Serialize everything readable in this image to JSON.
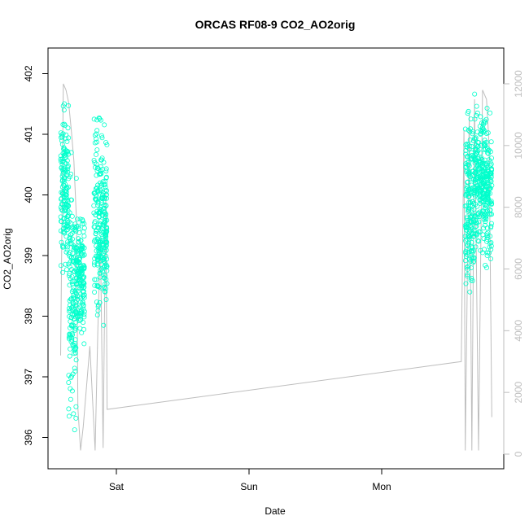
{
  "chart_data": {
    "type": "scatter",
    "title": "ORCAS RF08-9 CO2_AO2orig",
    "xlabel": "Date",
    "ylabel": "CO2_AO2orig",
    "x_ticks": [
      "Sat",
      "Sun",
      "Mon"
    ],
    "y_ticks": [
      "396",
      "397",
      "398",
      "399",
      "400",
      "401",
      "402"
    ],
    "y2_ticks": [
      "0",
      "2000",
      "4000",
      "6000",
      "8000",
      "10000",
      "12000"
    ],
    "ylim": [
      395.7,
      402.2
    ],
    "y2lim": [
      0,
      12000
    ],
    "x_range_days": [
      "Fri",
      "Mon"
    ],
    "series": [
      {
        "type": "scatter",
        "color": "#00ffcc",
        "clusters": [
          {
            "x": [
              0.58,
              0.64
            ],
            "y_center": 400.1,
            "y_range": [
              398.6,
              401.9
            ]
          },
          {
            "x": [
              0.64,
              0.7
            ],
            "y_center": 398.4,
            "y_range": [
              395.7,
              400.7
            ]
          },
          {
            "x": [
              0.7,
              0.76
            ],
            "y_center": 398.7,
            "y_range": [
              397.1,
              399.6
            ]
          },
          {
            "x": [
              0.83,
              0.93
            ],
            "y_center": 399.5,
            "y_range": [
              397.6,
              401.5
            ]
          },
          {
            "x": [
              3.63,
              3.7
            ],
            "y_center": 399.9,
            "y_range": [
              398.4,
              402.0
            ]
          },
          {
            "x": [
              3.7,
              3.78
            ],
            "y_center": 400.3,
            "y_range": [
              398.9,
              402.2
            ]
          },
          {
            "x": [
              3.78,
              3.83
            ],
            "y_center": 400.0,
            "y_range": [
              398.8,
              401.5
            ]
          }
        ]
      },
      {
        "type": "line",
        "axis": "right",
        "color": "#bebebe",
        "points": [
          [
            0.58,
            3200
          ],
          [
            0.6,
            12000
          ],
          [
            0.62,
            11800
          ],
          [
            0.64,
            11400
          ],
          [
            0.66,
            10500
          ],
          [
            0.68,
            9500
          ],
          [
            0.7,
            7500
          ],
          [
            0.71,
            1500
          ],
          [
            0.73,
            120
          ],
          [
            0.75,
            900
          ],
          [
            0.8,
            3500
          ],
          [
            0.84,
            120
          ],
          [
            0.86,
            4000
          ],
          [
            0.88,
            7000
          ],
          [
            0.9,
            200
          ],
          [
            0.92,
            8500
          ],
          [
            0.93,
            1450
          ],
          [
            3.6,
            3000
          ],
          [
            3.62,
            10500
          ],
          [
            3.63,
            120
          ],
          [
            3.66,
            11000
          ],
          [
            3.68,
            120
          ],
          [
            3.7,
            11500
          ],
          [
            3.73,
            120
          ],
          [
            3.76,
            11800
          ],
          [
            3.79,
            11500
          ],
          [
            3.81,
            10000
          ],
          [
            3.83,
            1200
          ]
        ]
      }
    ],
    "grid": false,
    "legend": "none"
  }
}
